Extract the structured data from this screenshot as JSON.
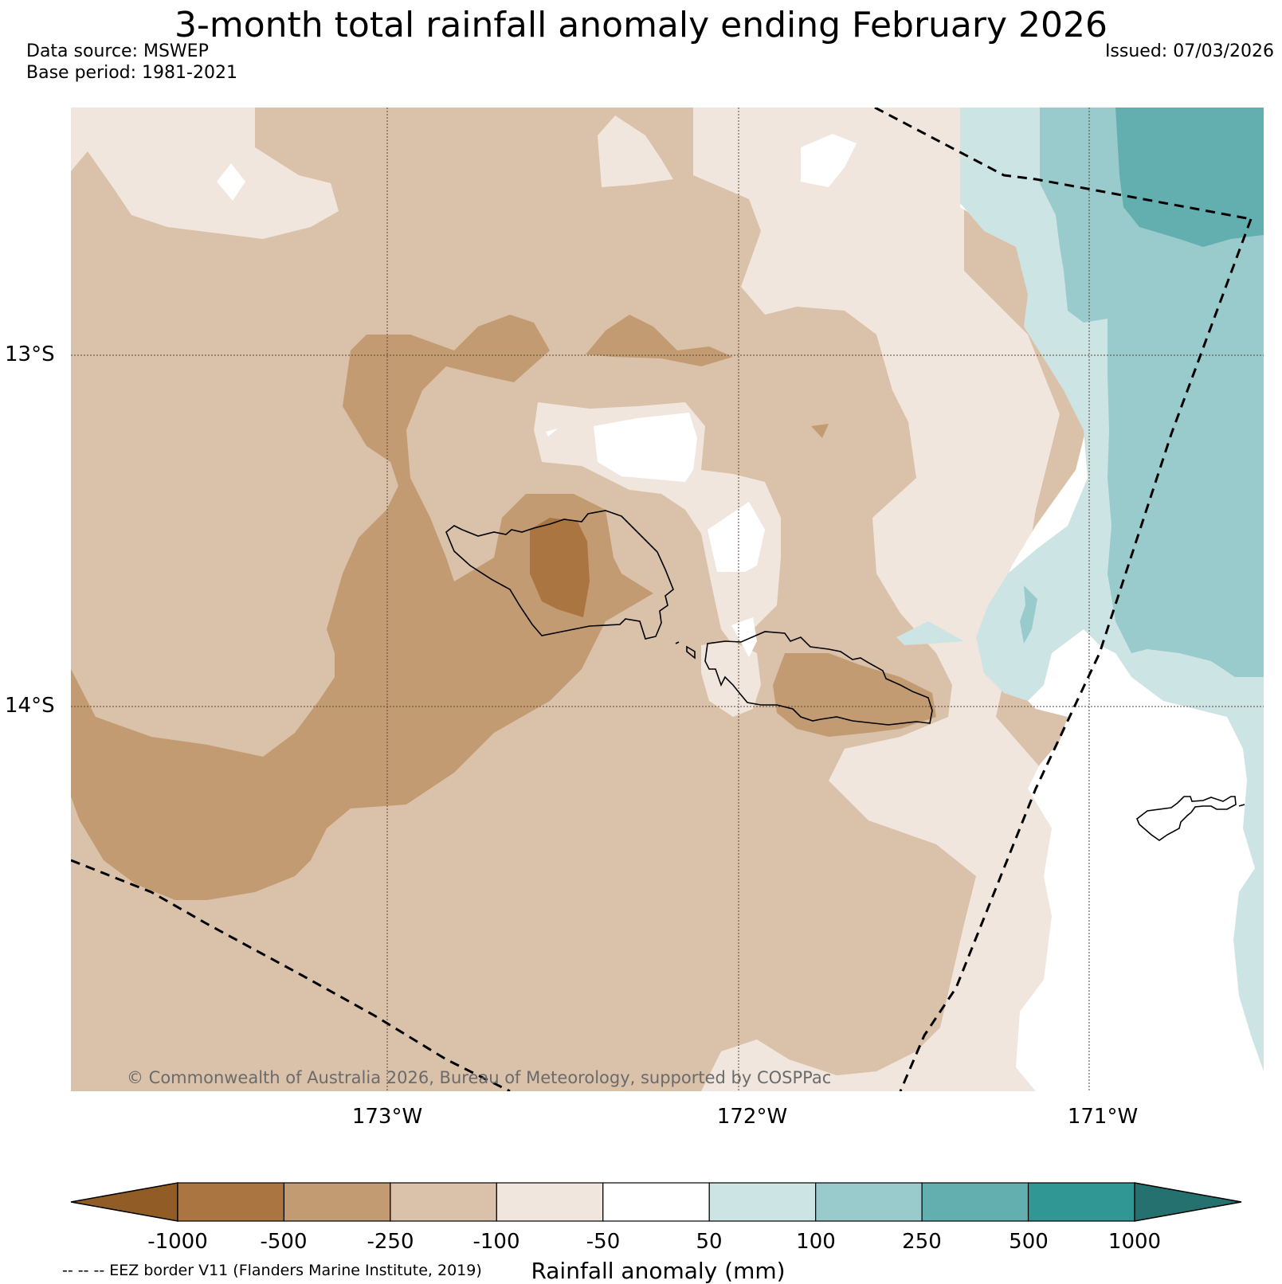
{
  "header": {
    "title": "3-month total rainfall anomaly ending February 2026",
    "data_source": "Data source: MSWEP",
    "base_period": "Base period: 1981-2021",
    "issued": "Issued: 07/03/2026"
  },
  "map": {
    "lat_labels": [
      "13°S",
      "14°S"
    ],
    "lon_labels": [
      "173°W",
      "172°W",
      "171°W"
    ],
    "copyright": "© Commonwealth of Australia 2026, Bureau of Meteorology, supported by COSPPac",
    "eez_legend": "-- -- -- EEZ border V11 (Flanders Marine Institute, 2019)"
  },
  "colorbar": {
    "title": "Rainfall anomaly (mm)",
    "ticks": [
      "-1000",
      "-500",
      "-250",
      "-100",
      "-50",
      "50",
      "100",
      "250",
      "500",
      "1000"
    ],
    "colors": [
      "#925c27",
      "#aa7541",
      "#c39b72",
      "#dac1a9",
      "#f0e6dd",
      "#ffffff",
      "#cde4e4",
      "#9acbcc",
      "#63afb0",
      "#309794",
      "#25716f"
    ]
  }
}
